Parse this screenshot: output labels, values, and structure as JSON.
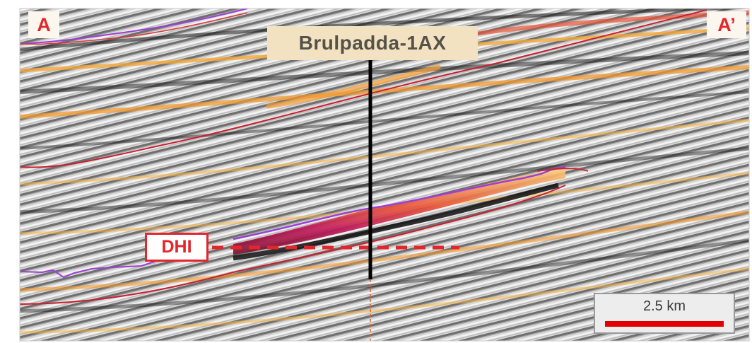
{
  "labels": {
    "section_start": "A",
    "section_end": "A’",
    "well": "Brulpadda-1AX",
    "dhi": "DHI",
    "scale": "2.5 km"
  },
  "colors": {
    "label_red": "#e3262b",
    "well_box": "#f2e2c2",
    "horizon_red": "#c8202e",
    "horizon_purple": "#9b3fd6",
    "scale_bar": "#e00000",
    "amplitude_orange": "#f39a2e"
  }
}
